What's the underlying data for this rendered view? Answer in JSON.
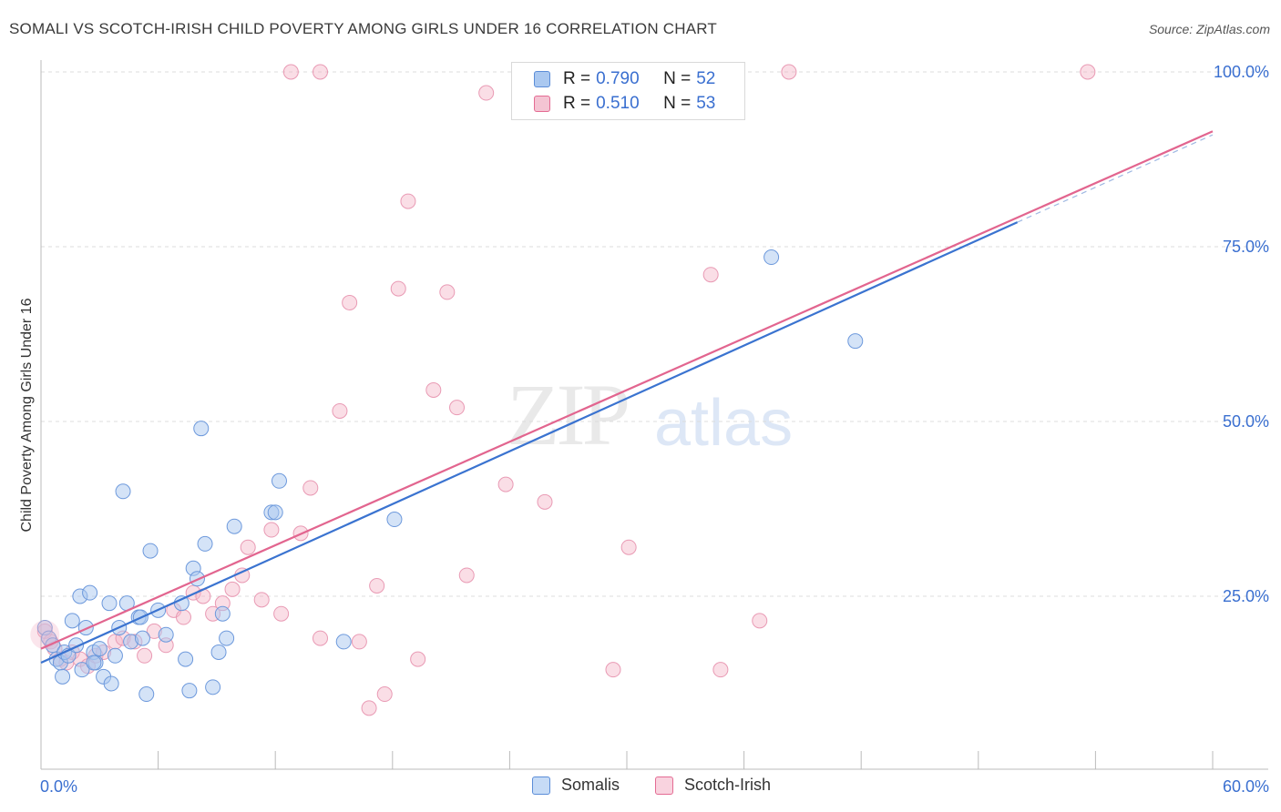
{
  "title": "SOMALI VS SCOTCH-IRISH CHILD POVERTY AMONG GIRLS UNDER 16 CORRELATION CHART",
  "source": "Source: ZipAtlas.com",
  "watermark": {
    "zip": "ZIP",
    "atlas": "atlas"
  },
  "colors": {
    "blue": "#5b8dd8",
    "blue_fill": "#aac8f0",
    "pink": "#e46b93",
    "pink_fill": "#f4b5c8",
    "axis_label": "#3a6fd0"
  },
  "legend": {
    "series": [
      {
        "name": "Somalis",
        "r_label": "R =",
        "r": "0.790",
        "n_label": "N =",
        "n": "52"
      },
      {
        "name": "Scotch-Irish",
        "r_label": "R =",
        "r": "0.510",
        "n_label": "N =",
        "n": "53"
      }
    ]
  },
  "chart_data": {
    "type": "scatter",
    "title": "SOMALI VS SCOTCH-IRISH CHILD POVERTY AMONG GIRLS UNDER 16 CORRELATION CHART",
    "xlabel": "",
    "ylabel": "Child Poverty Among Girls Under 16",
    "xlim": [
      0,
      60
    ],
    "ylim": [
      0,
      105
    ],
    "x_tick_labels": {
      "left": "0.0%",
      "right": "60.0%"
    },
    "y_ticks": [
      25,
      50,
      75,
      100
    ],
    "y_tick_labels": [
      "25.0%",
      "50.0%",
      "75.0%",
      "100.0%"
    ],
    "grid": true,
    "series": [
      {
        "name": "Somalis",
        "color": "#5b8dd8",
        "points": [
          [
            0.2,
            20.5
          ],
          [
            0.4,
            19.0
          ],
          [
            0.6,
            18.0
          ],
          [
            0.8,
            16.0
          ],
          [
            1.0,
            15.5
          ],
          [
            1.1,
            13.5
          ],
          [
            1.2,
            17.0
          ],
          [
            1.4,
            16.5
          ],
          [
            1.6,
            21.5
          ],
          [
            1.8,
            18.0
          ],
          [
            2.0,
            25.0
          ],
          [
            2.1,
            14.5
          ],
          [
            2.3,
            20.5
          ],
          [
            2.5,
            25.5
          ],
          [
            2.7,
            17.0
          ],
          [
            2.8,
            15.5
          ],
          [
            3.0,
            17.5
          ],
          [
            3.2,
            13.5
          ],
          [
            3.5,
            24.0
          ],
          [
            3.6,
            12.5
          ],
          [
            3.8,
            16.5
          ],
          [
            4.0,
            20.5
          ],
          [
            4.2,
            40.0
          ],
          [
            4.4,
            24.0
          ],
          [
            4.6,
            18.5
          ],
          [
            5.0,
            22.0
          ],
          [
            5.1,
            22.0
          ],
          [
            5.2,
            19.0
          ],
          [
            5.4,
            11.0
          ],
          [
            5.6,
            31.5
          ],
          [
            6.0,
            23.0
          ],
          [
            6.4,
            19.5
          ],
          [
            7.2,
            24.0
          ],
          [
            7.4,
            16.0
          ],
          [
            7.6,
            11.5
          ],
          [
            7.8,
            29.0
          ],
          [
            8.0,
            27.5
          ],
          [
            8.2,
            49.0
          ],
          [
            8.4,
            32.5
          ],
          [
            8.8,
            12.0
          ],
          [
            9.1,
            17.0
          ],
          [
            9.3,
            22.5
          ],
          [
            9.5,
            19.0
          ],
          [
            9.9,
            35.0
          ],
          [
            11.8,
            37.0
          ],
          [
            12.0,
            37.0
          ],
          [
            12.2,
            41.5
          ],
          [
            15.5,
            18.5
          ],
          [
            18.1,
            36.0
          ],
          [
            37.4,
            73.5
          ],
          [
            41.7,
            61.5
          ],
          [
            2.7,
            15.5
          ]
        ],
        "trend": {
          "x0": 0,
          "y0": 15.5,
          "x1": 50,
          "y1": 78.5,
          "dashed_to_x": 60,
          "dashed_to_y": 91.0
        }
      },
      {
        "name": "Scotch-Irish",
        "color": "#e46b93",
        "points": [
          [
            0.2,
            20.0
          ],
          [
            0.5,
            18.5
          ],
          [
            0.7,
            17.5
          ],
          [
            1.0,
            16.0
          ],
          [
            1.3,
            15.5
          ],
          [
            1.6,
            17.0
          ],
          [
            2.0,
            16.0
          ],
          [
            2.4,
            15.0
          ],
          [
            2.8,
            16.5
          ],
          [
            3.2,
            17.0
          ],
          [
            3.8,
            18.5
          ],
          [
            4.2,
            19.0
          ],
          [
            4.8,
            18.5
          ],
          [
            5.3,
            16.5
          ],
          [
            5.8,
            20.0
          ],
          [
            6.4,
            18.0
          ],
          [
            6.8,
            23.0
          ],
          [
            7.3,
            22.0
          ],
          [
            7.8,
            25.5
          ],
          [
            8.3,
            25.0
          ],
          [
            8.8,
            22.5
          ],
          [
            9.3,
            24.0
          ],
          [
            9.8,
            26.0
          ],
          [
            10.3,
            28.0
          ],
          [
            10.6,
            32.0
          ],
          [
            11.3,
            24.5
          ],
          [
            11.8,
            34.5
          ],
          [
            12.3,
            22.5
          ],
          [
            13.3,
            34.0
          ],
          [
            13.8,
            40.5
          ],
          [
            14.3,
            19.0
          ],
          [
            15.3,
            51.5
          ],
          [
            15.8,
            67.0
          ],
          [
            16.3,
            18.5
          ],
          [
            16.8,
            9.0
          ],
          [
            17.2,
            26.5
          ],
          [
            17.6,
            11.0
          ],
          [
            18.3,
            69.0
          ],
          [
            18.8,
            81.5
          ],
          [
            19.3,
            16.0
          ],
          [
            20.1,
            54.5
          ],
          [
            20.8,
            68.5
          ],
          [
            21.3,
            52.0
          ],
          [
            21.8,
            28.0
          ],
          [
            22.8,
            97.0
          ],
          [
            23.8,
            41.0
          ],
          [
            25.8,
            38.5
          ],
          [
            29.3,
            14.5
          ],
          [
            30.1,
            32.0
          ],
          [
            34.3,
            71.0
          ],
          [
            34.8,
            14.5
          ],
          [
            36.8,
            21.5
          ],
          [
            14.3,
            100.0
          ]
        ],
        "extra_points_top": [
          [
            12.8,
            100.0
          ],
          [
            38.3,
            100.0
          ],
          [
            53.6,
            100.0
          ]
        ],
        "trend": {
          "x0": 0,
          "y0": 17.5,
          "x1": 60,
          "y1": 91.5
        }
      }
    ]
  }
}
